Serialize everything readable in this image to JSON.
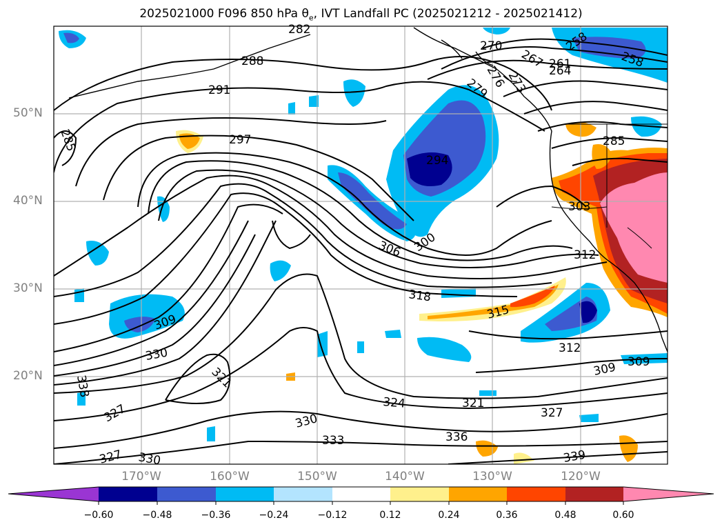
{
  "title": {
    "text": "2025021000 F096 850 hPa θ",
    "sub": "e",
    "rest": ", IVT Landfall PC (2025021212 - 2025021412)"
  },
  "map": {
    "lon_range": [
      -180,
      -110
    ],
    "lat_range": [
      10,
      60
    ],
    "lat_ticks": [
      "50°N",
      "40°N",
      "30°N",
      "20°N"
    ],
    "lon_ticks": [
      "170°W",
      "160°W",
      "150°W",
      "140°W",
      "130°W",
      "120°W"
    ],
    "grid": true,
    "contour_labels": [
      "282",
      "288",
      "291",
      "297",
      "294",
      "285",
      "258",
      "258",
      "261",
      "264",
      "267",
      "270",
      "273",
      "276",
      "279",
      "303",
      "306",
      "300",
      "312",
      "315",
      "318",
      "309",
      "330",
      "321",
      "338",
      "327",
      "330",
      "333",
      "336",
      "324",
      "321",
      "327",
      "339",
      "312",
      "309",
      "309",
      "327",
      "330"
    ]
  },
  "colorbar": {
    "ticks": [
      "−0.60",
      "−0.48",
      "−0.36",
      "−0.24",
      "−0.12",
      "0.12",
      "0.24",
      "0.36",
      "0.48",
      "0.60"
    ],
    "colors": [
      "#9a35d3",
      "#000090",
      "#3d5ad0",
      "#00bbf4",
      "#b3e4fe",
      "#ffffff",
      "#fff08c",
      "#ffa500",
      "#ff4500",
      "#b22222",
      "#ff88b0"
    ]
  }
}
